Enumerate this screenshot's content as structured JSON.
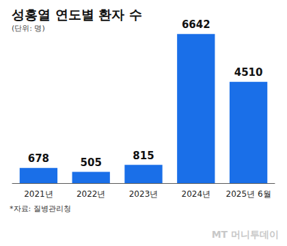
{
  "chart_data": {
    "type": "bar",
    "title": "성홍열 연도별 환자 수",
    "subtitle": "(단위: 명)",
    "categories": [
      "2021년",
      "2022년",
      "2023년",
      "2024년",
      "2025년 6월"
    ],
    "values": [
      678,
      505,
      815,
      6642,
      4510
    ],
    "color": "#1a6fe8",
    "ylim": [
      0,
      7000
    ],
    "grid": false,
    "data_labels": true,
    "tick_labels": "x",
    "source": "*자료: 질병관리청",
    "watermark": "MT 머니투데이"
  }
}
